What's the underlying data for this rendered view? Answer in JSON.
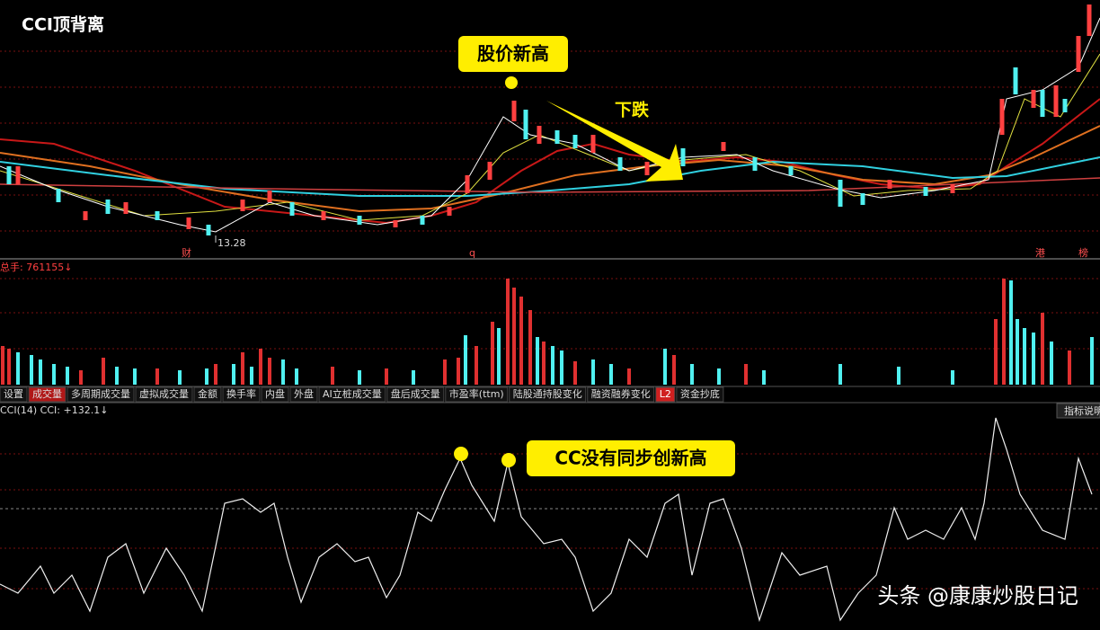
{
  "title": "CCI顶背离",
  "annotations": {
    "price_high": "股价新高",
    "decline": "下跌",
    "cci_note": "CC没有同步创新高"
  },
  "price_panel": {
    "low_label": "13.28",
    "markers": [
      "财",
      "q",
      "港",
      "榜"
    ]
  },
  "volume_panel": {
    "label": "总手: 761155↓"
  },
  "tabs": [
    "设置",
    "成交量",
    "多周期成交量",
    "虚拟成交量",
    "金额",
    "换手率",
    "内盘",
    "外盘",
    "AI立桩成交量",
    "盘后成交量",
    "市盈率(ttm)",
    "陆股通持股变化",
    "融资融券变化",
    "L2",
    "资金抄底"
  ],
  "cci_panel": {
    "label": "CCI(14) CCI: +132.1↓",
    "button": "指标说明"
  },
  "watermark": "头条 @康康炒股日记"
}
